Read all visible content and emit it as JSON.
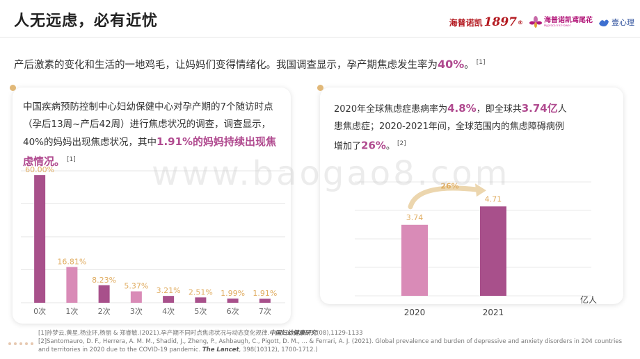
{
  "header": {
    "title": "人无远虑，必有近忧",
    "logos": {
      "logo1_cn": "海普诺凯",
      "logo1_num": "1897",
      "logo2_cn": "海普诺凯鸢尾花",
      "logo2_sub": "Hyproca Iris Flower",
      "logo3_cn": "壹心理"
    }
  },
  "intro": {
    "text": "产后激素的变化和生活的一地鸡毛，让妈妈们变得情绪化。我国调查显示，孕产期焦虑发生率为",
    "highlight": "40%",
    "end": "。",
    "cite": "[1]"
  },
  "left_card": {
    "text": "中国疾病预防控制中心妇幼保健中心对孕产期的7个随访时点（孕后13周~产后42周）进行焦虑状况的调查，调查显示，40%的妈妈出现焦虑状况，其中",
    "highlight": "1.91%的妈妈持续出现焦虑情况。",
    "cite": "[1]"
  },
  "right_card": {
    "t1": "2020年全球焦虑症患病率为",
    "h1": "4.8%",
    "t2": "，即全球共",
    "h2": "3.74亿",
    "t3": "人患焦虑症；2020-2021年间，全球范围内的焦虑障碍病例增加了",
    "h3": "26%",
    "t4": "。",
    "cite": "[2]"
  },
  "watermark": "www.baogao8.com",
  "references": {
    "ref1_text": "[1]孙梦云,黄星,杨业环,杨丽 & 郑睿敏.(2021).孕产期不同时点焦虑状况与动态变化规律.",
    "ref1_journal": "中国妇幼健康研究",
    "ref1_end": "(08),1129-1133",
    "ref2_text": "[2]Santomauro, D. F., Herrera, A. M. M., Shadid, J., Zheng, P., Ashbaugh, C., Pigott, D. M., ... & Ferrari, A. J. (2021). Global prevalence and burden of depressive and anxiety disorders in 204 countries and territories in 2020 due to the COVID-19 pandemic.",
    "ref2_journal": "The Lancet",
    "ref2_end": ", 398(10312), 1700-1712.)"
  },
  "colors": {
    "accent": "#b04a8f",
    "bar_dark": "#a8508b",
    "bar_light": "#d98bb7",
    "label_gold": "#e0ad62",
    "dot": "#e1b878"
  },
  "chart_data": [
    {
      "type": "bar",
      "categories": [
        "0次",
        "1次",
        "2次",
        "3次",
        "4次",
        "5次",
        "6次",
        "7次"
      ],
      "values": [
        60.0,
        16.81,
        8.23,
        5.37,
        3.21,
        2.51,
        1.99,
        1.91
      ],
      "value_labels": [
        "60.00%",
        "16.81%",
        "8.23%",
        "5.37%",
        "3.21%",
        "2.51%",
        "1.99%",
        "1.91%"
      ],
      "ylim": [
        0,
        62
      ],
      "grid": true,
      "title": "",
      "xlabel": "",
      "ylabel": ""
    },
    {
      "type": "bar",
      "categories": [
        "2020",
        "2021"
      ],
      "values": [
        3.74,
        4.71
      ],
      "value_labels": [
        "3.74",
        "4.71"
      ],
      "unit": "亿人",
      "growth_label": "26%",
      "ylim": [
        0,
        6
      ],
      "grid": true,
      "title": "",
      "xlabel": "",
      "ylabel": ""
    }
  ]
}
